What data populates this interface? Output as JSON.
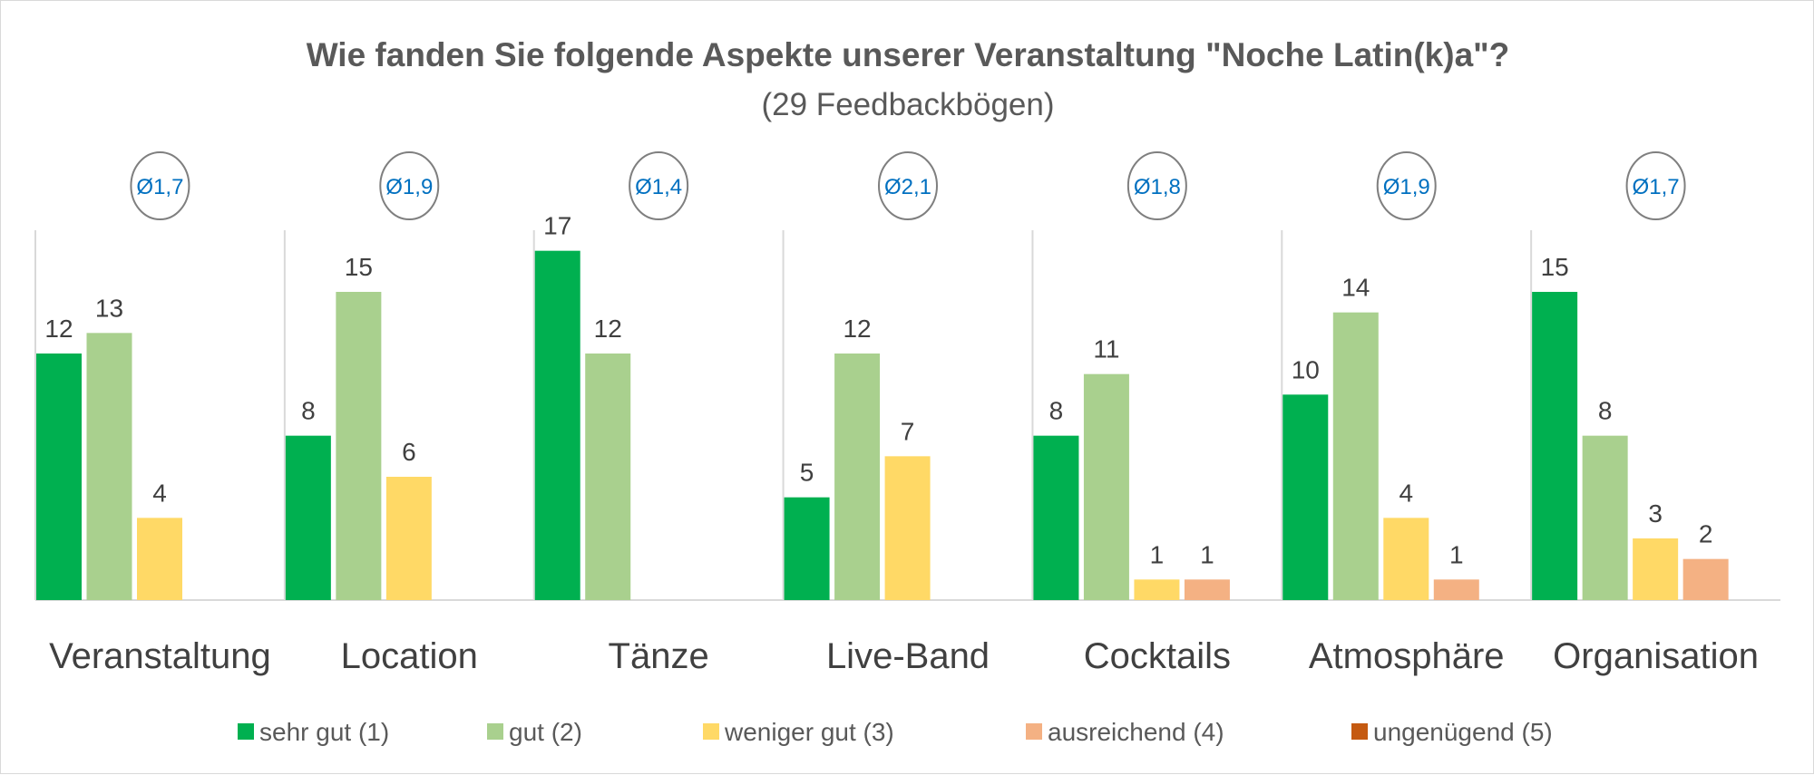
{
  "chart_data": {
    "type": "bar",
    "title": "Wie fanden Sie folgende Aspekte unserer Veranstaltung \"Noche Latin(k)a\"?",
    "subtitle": "(29 Feedbackbögen)",
    "categories": [
      "Veranstaltung",
      "Location",
      "Tänze",
      "Live-Band",
      "Cocktails",
      "Atmosphäre",
      "Organisation"
    ],
    "averages": [
      "Ø1,7",
      "Ø1,9",
      "Ø1,4",
      "Ø2,1",
      "Ø1,8",
      "Ø1,9",
      "Ø1,7"
    ],
    "series": [
      {
        "name": "sehr gut (1)",
        "color": "#00B050",
        "values": [
          12,
          8,
          17,
          5,
          8,
          10,
          15
        ]
      },
      {
        "name": "gut (2)",
        "color": "#A9D08E",
        "values": [
          13,
          15,
          12,
          12,
          11,
          14,
          8
        ]
      },
      {
        "name": "weniger gut (3)",
        "color": "#FFD966",
        "values": [
          4,
          6,
          0,
          7,
          1,
          4,
          3
        ]
      },
      {
        "name": "ausreichend (4)",
        "color": "#F4B183",
        "values": [
          0,
          0,
          0,
          0,
          1,
          1,
          2
        ]
      },
      {
        "name": "ungenügend (5)",
        "color": "#C55A11",
        "values": [
          0,
          0,
          0,
          0,
          0,
          0,
          0
        ]
      }
    ],
    "ylim": [
      0,
      18
    ],
    "grid": false,
    "legend": "bottom",
    "average_circle_color": "#7F7F7F",
    "average_text_color": "#0070C0"
  }
}
